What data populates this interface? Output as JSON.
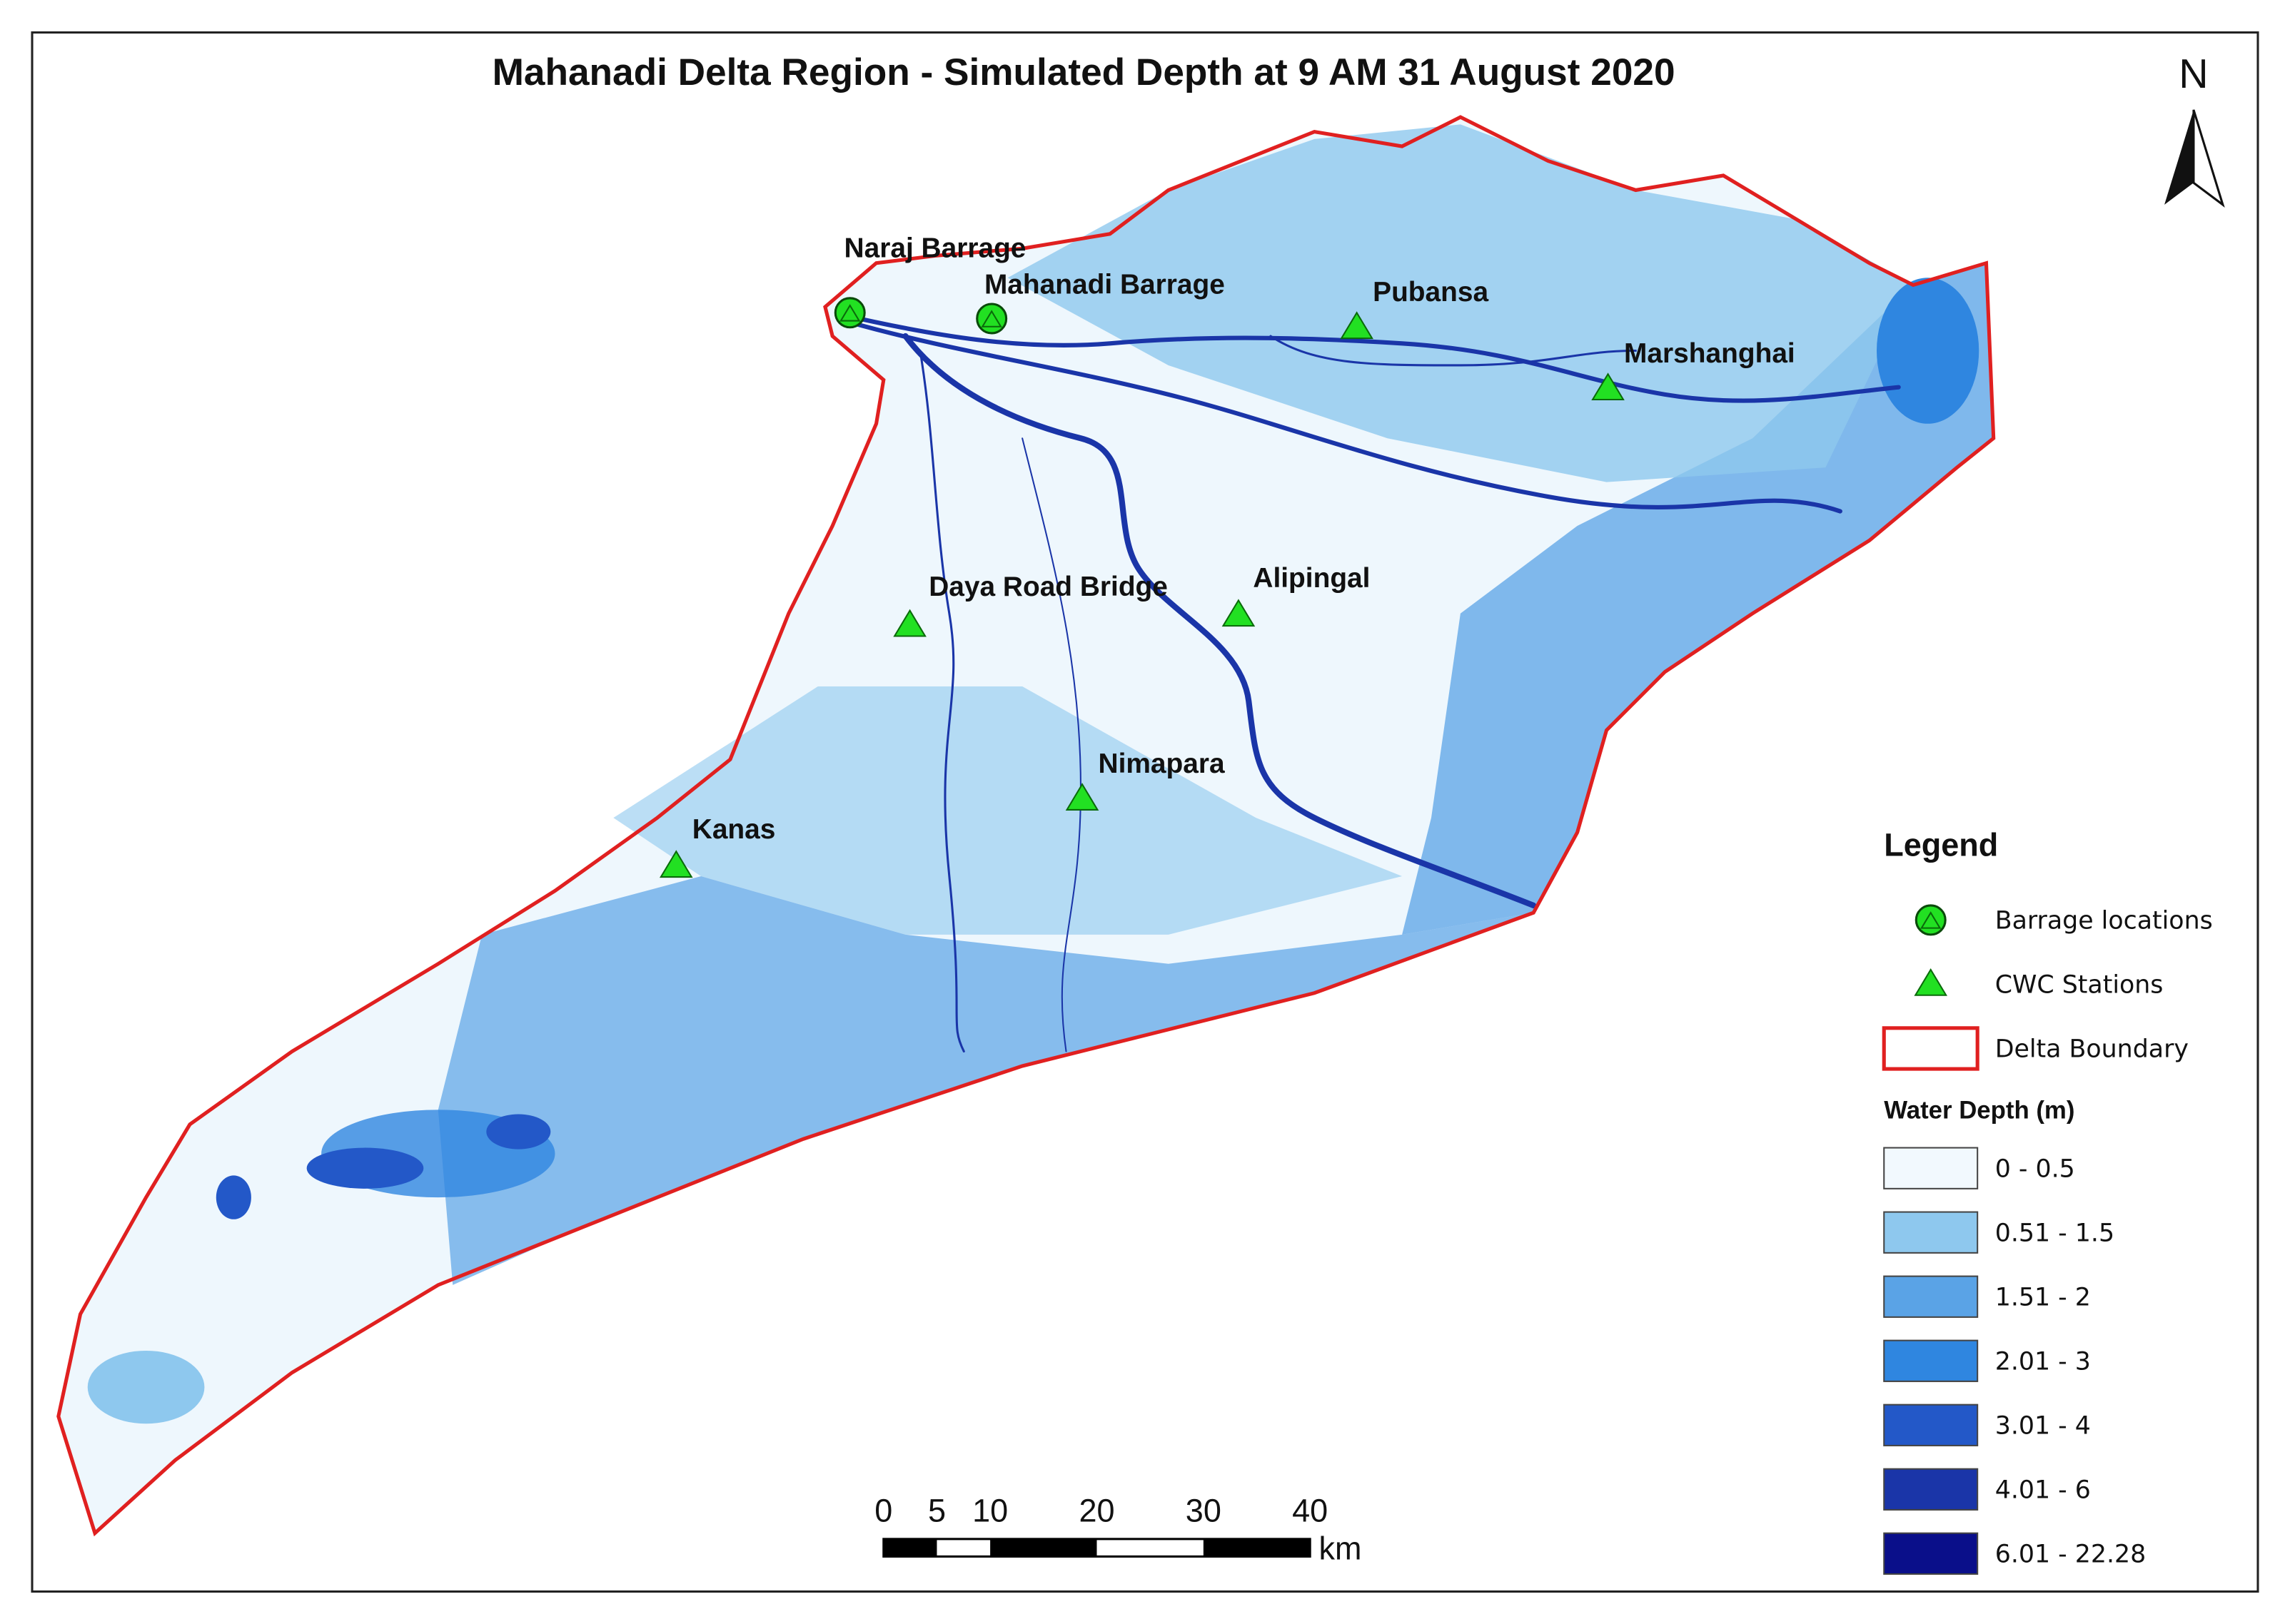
{
  "title": "Mahanadi Delta Region - Simulated Depth at 9 AM 31 August 2020",
  "north": "N",
  "barrages": [
    "Naraj Barrage",
    "Mahanadi Barrage"
  ],
  "cwc_stations": [
    "Pubansa",
    "Marshanghai",
    "Alipingal",
    "Daya Road Bridge",
    "Nimapara",
    "Kanas"
  ],
  "legend": {
    "title": "Legend",
    "items": [
      "Barrage locations",
      "CWC Stations",
      "Delta Boundary"
    ],
    "depth_title": "Water Depth (m)",
    "depth_classes": [
      {
        "label": "0 - 0.5",
        "color": "#f2f9fe"
      },
      {
        "label": "0.51 - 1.5",
        "color": "#8ec8ee"
      },
      {
        "label": "1.51 - 2",
        "color": "#5aa3e6"
      },
      {
        "label": "2.01 - 3",
        "color": "#2f86e0"
      },
      {
        "label": "3.01 - 4",
        "color": "#2358c8"
      },
      {
        "label": "4.01 - 6",
        "color": "#1a35a8"
      },
      {
        "label": "6.01 - 22.28",
        "color": "#0a0f8a"
      }
    ]
  },
  "scale_bar": {
    "ticks": [
      0,
      5,
      10,
      20,
      30,
      40
    ],
    "unit": "km"
  }
}
